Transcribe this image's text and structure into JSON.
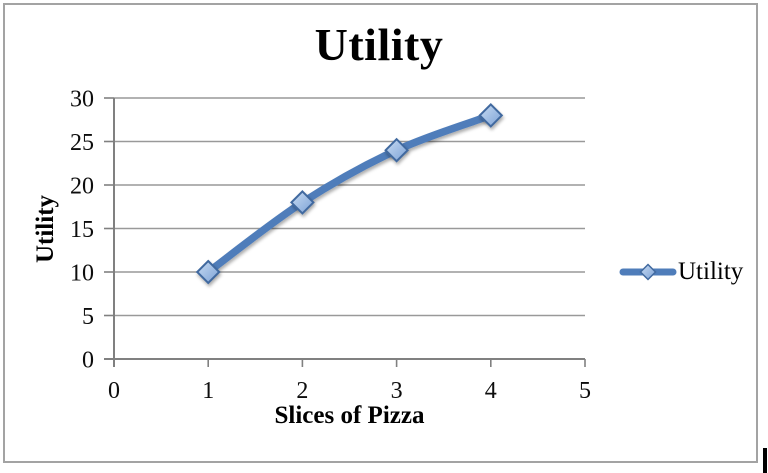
{
  "chart_data": {
    "type": "line",
    "title": "Utility",
    "xlabel": "Slices of Pizza",
    "ylabel": "Utility",
    "series": [
      {
        "name": "Utility",
        "x": [
          1,
          2,
          3,
          4
        ],
        "y": [
          10,
          18,
          24,
          28
        ]
      }
    ],
    "xlim": [
      0,
      5
    ],
    "ylim": [
      0,
      30
    ],
    "xticks": [
      0,
      1,
      2,
      3,
      4,
      5
    ],
    "yticks": [
      0,
      5,
      10,
      15,
      20,
      25,
      30
    ],
    "grid": "horizontal",
    "legend_position": "right",
    "smooth": true,
    "colors": {
      "line": "#4f7dba",
      "marker_fill_light": "#c9dcf2",
      "marker_fill_dark": "#7ba1d6",
      "marker_border": "#41699f",
      "gridline": "#999999",
      "axis": "#808080",
      "tick_text": "#0d0d0d",
      "title_text": "#000000"
    }
  }
}
